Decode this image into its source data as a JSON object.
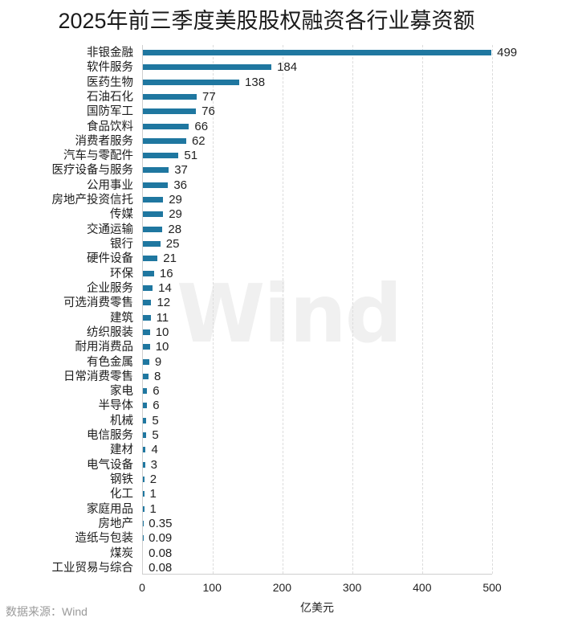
{
  "title": "2025年前三季度美股股权融资各行业募资额",
  "source": "数据来源：Wind",
  "watermark": "Wind",
  "colors": {
    "bar": "#1f77a0",
    "grid": "#dcdcdc",
    "axis": "#cfcfcf",
    "source_text": "#9a9a9a"
  },
  "chart_data": {
    "type": "bar",
    "orientation": "horizontal",
    "title": "2025年前三季度美股股权融资各行业募资额",
    "xlabel": "亿美元",
    "ylabel": "",
    "xlim": [
      0,
      500
    ],
    "xticks": [
      "0",
      "100",
      "200",
      "300",
      "400",
      "500"
    ],
    "grid": "vertical dashed",
    "legend": "none",
    "categories": [
      "非银金融",
      "软件服务",
      "医药生物",
      "石油石化",
      "国防军工",
      "食品饮料",
      "消费者服务",
      "汽车与零配件",
      "医疗设备与服务",
      "公用事业",
      "房地产投资信托",
      "传媒",
      "交通运输",
      "银行",
      "硬件设备",
      "环保",
      "企业服务",
      "可选消费零售",
      "建筑",
      "纺织服装",
      "耐用消费品",
      "有色金属",
      "日常消费零售",
      "家电",
      "半导体",
      "机械",
      "电信服务",
      "建材",
      "电气设备",
      "钢铁",
      "化工",
      "家庭用品",
      "房地产",
      "造纸与包装",
      "煤炭",
      "工业贸易与综合"
    ],
    "values": [
      499,
      184,
      138,
      77,
      76,
      66,
      62,
      51,
      37,
      36,
      29,
      29,
      28,
      25,
      21,
      16,
      14,
      12,
      11,
      10,
      10,
      9,
      8,
      6,
      6,
      5,
      5,
      4,
      3,
      2,
      1,
      1,
      0.35,
      0.09,
      0.08,
      0.08
    ],
    "labels": [
      "499",
      "184",
      "138",
      "77",
      "76",
      "66",
      "62",
      "51",
      "37",
      "36",
      "29",
      "29",
      "28",
      "25",
      "21",
      "16",
      "14",
      "12",
      "11",
      "10",
      "10",
      "9",
      "8",
      "6",
      "6",
      "5",
      "5",
      "4",
      "3",
      "2",
      "1",
      "1",
      "0.35",
      "0.09",
      "0.08",
      "0.08"
    ],
    "source": "数据来源：Wind"
  }
}
